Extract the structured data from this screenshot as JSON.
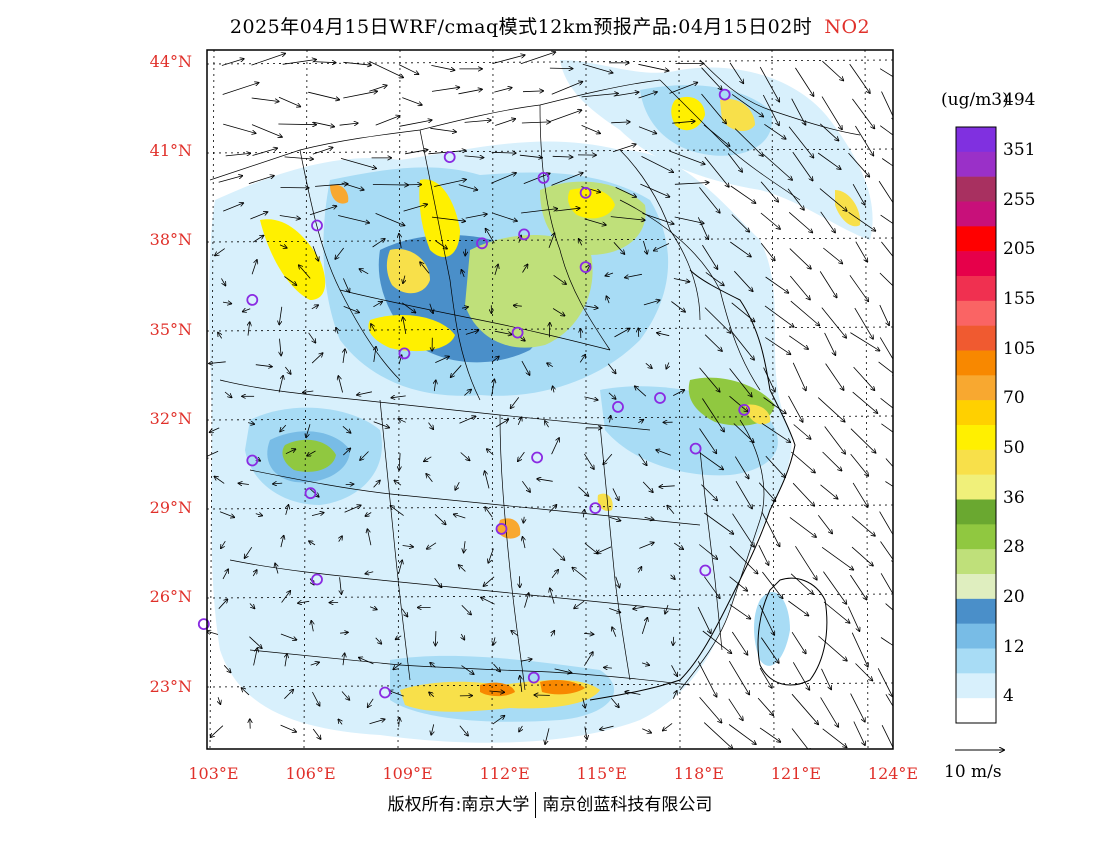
{
  "title": {
    "main": "2025年04月15日WRF/cmaq模式12km预报产品:04月15日02时",
    "species": "NO2"
  },
  "map": {
    "lat_labels": [
      "44°N",
      "41°N",
      "38°N",
      "35°N",
      "32°N",
      "29°N",
      "26°N",
      "23°N"
    ],
    "lat_values": [
      44,
      41,
      38,
      35,
      32,
      29,
      26,
      23
    ],
    "lon_labels": [
      "103°E",
      "106°E",
      "109°E",
      "112°E",
      "115°E",
      "118°E",
      "121°E",
      "124°E"
    ],
    "lon_values": [
      103,
      106,
      109,
      112,
      115,
      118,
      121,
      124
    ],
    "lat_range": [
      20.9,
      44.4
    ],
    "lon_range": [
      102.8,
      124
    ]
  },
  "legend": {
    "units": "(ug/m3)",
    "colors": [
      "#ffffff",
      "#d8f0fc",
      "#a8dcf5",
      "#78bce6",
      "#4a8fc9",
      "#dfeebf",
      "#bfe07a",
      "#90c840",
      "#6aa830",
      "#f0f07a",
      "#f8e04a",
      "#fff000",
      "#ffd000",
      "#f8a830",
      "#f88800",
      "#f05a30",
      "#fa6464",
      "#f03050",
      "#e6004a",
      "#ff0000",
      "#c8107a",
      "#a83060",
      "#9a30c8",
      "#8030e0"
    ],
    "labels": [
      "4",
      "12",
      "20",
      "28",
      "36",
      "50",
      "70",
      "105",
      "155",
      "205",
      "255",
      "351",
      "494"
    ]
  },
  "wind_reference": "10 m/s",
  "footer": {
    "left": "版权所有:南京大学",
    "right": "南京创蓝科技有限公司"
  },
  "stations": [
    [
      118.8,
      42.9
    ],
    [
      110.3,
      40.8
    ],
    [
      113.2,
      40.1
    ],
    [
      114.5,
      39.6
    ],
    [
      106.2,
      38.5
    ],
    [
      111.3,
      37.9
    ],
    [
      112.6,
      38.2
    ],
    [
      114.5,
      37.1
    ],
    [
      104.2,
      36.0
    ],
    [
      112.4,
      34.9
    ],
    [
      108.9,
      34.2
    ],
    [
      115.5,
      32.4
    ],
    [
      116.8,
      32.7
    ],
    [
      119.4,
      32.3
    ],
    [
      117.9,
      31.0
    ],
    [
      104.2,
      30.6
    ],
    [
      113.0,
      30.7
    ],
    [
      106.0,
      29.5
    ],
    [
      111.9,
      28.3
    ],
    [
      114.8,
      29.0
    ],
    [
      106.2,
      26.6
    ],
    [
      118.2,
      26.9
    ],
    [
      102.7,
      25.1
    ],
    [
      108.3,
      22.8
    ],
    [
      112.9,
      23.3
    ]
  ]
}
